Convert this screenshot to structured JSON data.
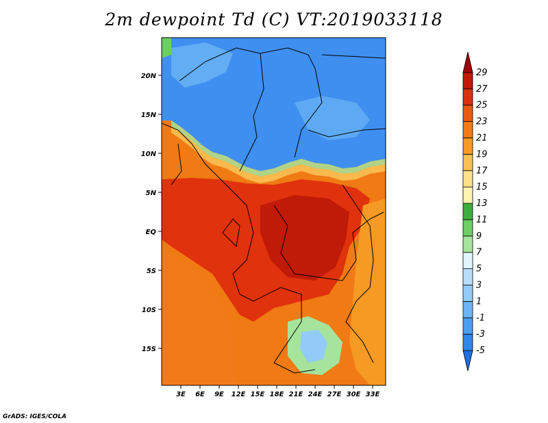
{
  "title": "2m dewpoint Td (C) VT:2019033118",
  "credit": "GrADS: IGES/COLA",
  "map": {
    "lat_labels": [
      "20N",
      "15N",
      "10N",
      "5N",
      "EQ",
      "5S",
      "10S",
      "15S"
    ],
    "lon_labels": [
      "3E",
      "6E",
      "9E",
      "12E",
      "15E",
      "18E",
      "21E",
      "24E",
      "27E",
      "30E",
      "33E"
    ]
  },
  "colorbar": {
    "levels": [
      "-5",
      "-3",
      "-1",
      "1",
      "3",
      "5",
      "7",
      "9",
      "11",
      "13",
      "15",
      "17",
      "19",
      "21",
      "23",
      "25",
      "27",
      "29"
    ],
    "colors": [
      "#1f6fe0",
      "#2e88ea",
      "#4a9ff0",
      "#6cb4f5",
      "#93cbf8",
      "#b8def9",
      "#e1f5fc",
      "#a6e39b",
      "#6ccf64",
      "#3daf3c",
      "#fff4b0",
      "#fde28a",
      "#f9c052",
      "#f59a23",
      "#f07a14",
      "#e85a10",
      "#d8330c",
      "#c01a08",
      "#a00404"
    ]
  },
  "colors": {
    "dry_blue": "#3f8ff0",
    "humid_red": "#e0320c",
    "transition_orange": "#f27a18"
  }
}
